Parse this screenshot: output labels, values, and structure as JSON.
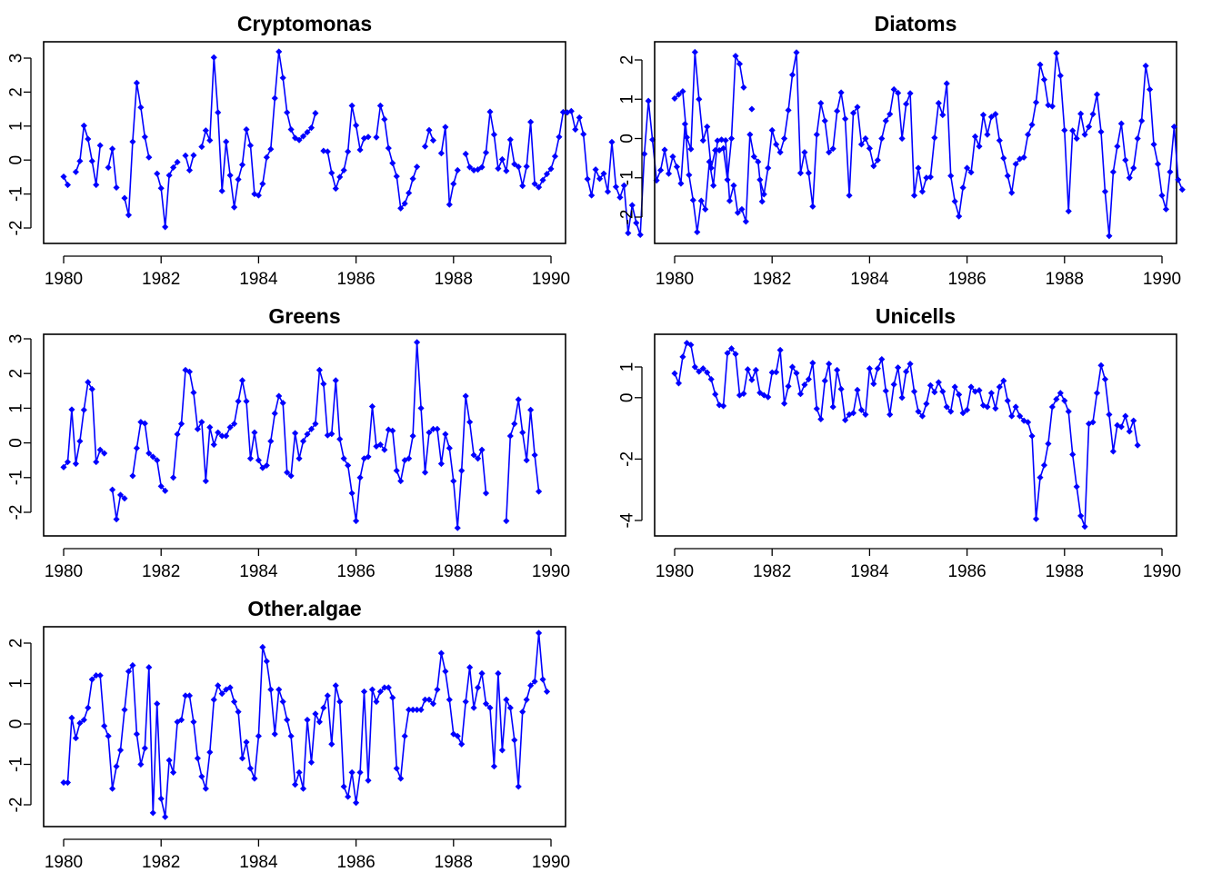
{
  "chart_data": [
    {
      "type": "line",
      "title": "Cryptomonas",
      "xlabel": "",
      "ylabel": "",
      "xlim": [
        1980,
        1990
      ],
      "ylim": [
        -2.3,
        3.2
      ],
      "x_ticks": [
        1980,
        1982,
        1984,
        1986,
        1988,
        1990
      ],
      "y_ticks": [
        -2,
        -1,
        0,
        1,
        2,
        3
      ],
      "x_start": 1980.0,
      "x_step": 0.08333,
      "style": {
        "color": "#0000ff",
        "markers": true,
        "line": true
      },
      "values": [
        -0.49,
        -0.73,
        null,
        -0.35,
        -0.03,
        1.01,
        0.62,
        -0.03,
        -0.73,
        0.43,
        null,
        -0.22,
        0.33,
        -0.81,
        null,
        -1.12,
        -1.62,
        0.54,
        2.27,
        1.55,
        0.68,
        0.08,
        null,
        -0.4,
        -0.83,
        -1.97,
        -0.45,
        -0.22,
        -0.06,
        null,
        0.13,
        -0.3,
        0.14,
        null,
        0.39,
        0.87,
        0.58,
        3.02,
        1.4,
        -0.91,
        0.54,
        -0.45,
        -1.39,
        -0.57,
        -0.14,
        0.9,
        0.43,
        -1.0,
        -1.04,
        -0.7,
        0.08,
        0.32,
        1.82,
        3.19,
        2.42,
        1.4,
        0.9,
        0.65,
        0.59,
        0.7,
        0.82,
        0.95,
        1.38,
        null,
        0.27,
        0.25,
        -0.38,
        -0.84,
        -0.5,
        -0.3,
        0.25,
        1.6,
        1.02,
        0.3,
        0.64,
        0.68,
        null,
        0.67,
        1.6,
        1.2,
        0.35,
        -0.09,
        -0.48,
        -1.42,
        -1.28,
        -0.97,
        -0.55,
        -0.2,
        null,
        0.4,
        0.88,
        0.58,
        null,
        0.2,
        0.97,
        -1.31,
        -0.7,
        -0.3,
        null,
        0.18,
        -0.21,
        -0.3,
        -0.28,
        -0.21,
        0.22,
        1.42,
        0.75,
        -0.25,
        0.02,
        -0.32,
        0.6,
        -0.12,
        -0.2,
        -0.76,
        -0.19,
        1.12,
        -0.7,
        -0.8,
        -0.59,
        -0.41,
        -0.26,
        0.11,
        0.68,
        1.41,
        1.4,
        1.44,
        0.9,
        1.25,
        0.76,
        -0.56,
        -1.04,
        -0.28,
        -0.55,
        -0.4,
        -0.93,
        0.53,
        -0.79,
        -1.1,
        -0.75,
        -2.15,
        -1.33,
        -1.85,
        -2.2,
        0.18,
        1.74,
        0.6,
        -0.6,
        -0.3,
        0.3,
        -0.4,
        0.1,
        -0.2,
        -0.69,
        1.06,
        -0.44,
        -1.18,
        -2.12,
        -1.2,
        -1.45,
        -0.05,
        -0.75,
        0.57,
        0.6,
        0.58,
        -1.2,
        -0.75,
        -1.55,
        -1.45,
        -1.81,
        0.75,
        0.1,
        -0.05,
        -1.22
      ]
    },
    {
      "type": "line",
      "title": "Diatoms",
      "xlabel": "",
      "ylabel": "",
      "xlim": [
        1980,
        1990
      ],
      "ylim": [
        -2.6,
        2.3
      ],
      "x_ticks": [
        1980,
        1982,
        1984,
        1986,
        1988,
        1990
      ],
      "y_ticks": [
        -2,
        -1,
        0,
        1,
        2
      ],
      "x_start": 1980.0,
      "x_step": 0.08333,
      "style": {
        "color": "#0000ff",
        "markers": true,
        "line": true
      },
      "values": [
        1.02,
        1.12,
        1.2,
        0.03,
        -0.27,
        2.2,
        1.0,
        -0.05,
        0.3,
        -0.75,
        -0.3,
        -0.3,
        -0.25,
        -1.05,
        0.0,
        2.1,
        1.9,
        1.3,
        null,
        0.75,
        null,
        -1.05,
        -1.42,
        -0.75,
        0.21,
        -0.15,
        -0.35,
        0.0,
        0.72,
        1.62,
        2.19,
        -0.88,
        -0.35,
        -0.88,
        -1.73,
        0.1,
        0.9,
        0.45,
        -0.35,
        -0.26,
        0.7,
        1.17,
        0.5,
        -1.45,
        0.65,
        0.8,
        -0.15,
        0.0,
        -0.25,
        -0.7,
        -0.55,
        0.0,
        0.45,
        0.62,
        1.25,
        1.16,
        0.0,
        0.88,
        1.15,
        -1.45,
        -0.75,
        -1.35,
        -1.0,
        -0.98,
        0.02,
        0.9,
        0.6,
        1.4,
        -0.95,
        -1.6,
        -1.98,
        -1.25,
        -0.75,
        -0.86,
        0.05,
        -0.2,
        0.6,
        0.1,
        0.55,
        0.62,
        -0.05,
        -0.5,
        -0.95,
        -1.38,
        -0.65,
        -0.52,
        -0.48,
        0.1,
        0.35,
        0.92,
        1.88,
        1.5,
        0.85,
        0.82,
        2.17,
        1.6,
        0.21,
        -1.85,
        0.2,
        0.0,
        0.63,
        0.1,
        0.3,
        0.62,
        1.12,
        0.17,
        -1.35,
        -2.48,
        -0.85,
        -0.2,
        0.38,
        -0.55,
        -1.0,
        -0.75,
        0.0,
        0.45,
        1.85,
        1.25,
        -0.15,
        -0.65,
        -1.45,
        -1.8,
        -0.85,
        0.3,
        -1.05,
        -1.3
      ]
    },
    {
      "type": "line",
      "title": "Greens",
      "xlabel": "",
      "ylabel": "",
      "xlim": [
        1980,
        1990
      ],
      "ylim": [
        -2.6,
        3.0
      ],
      "x_ticks": [
        1980,
        1982,
        1984,
        1986,
        1988,
        1990
      ],
      "y_ticks": [
        -2,
        -1,
        0,
        1,
        2,
        3
      ],
      "x_start": 1980.0,
      "x_step": 0.08333,
      "style": {
        "color": "#0000ff",
        "markers": true,
        "line": true
      },
      "values": [
        -0.7,
        -0.55,
        0.96,
        -0.6,
        0.05,
        0.95,
        1.75,
        1.55,
        -0.55,
        -0.2,
        -0.3,
        null,
        -1.35,
        -2.2,
        -1.5,
        -1.6,
        null,
        -0.95,
        -0.15,
        0.6,
        0.56,
        -0.3,
        -0.4,
        -0.5,
        -1.25,
        -1.38,
        null,
        -1.0,
        0.25,
        0.55,
        2.1,
        2.05,
        1.45,
        0.4,
        0.6,
        -1.1,
        0.45,
        -0.05,
        0.3,
        0.2,
        0.2,
        0.45,
        0.55,
        1.2,
        1.8,
        1.2,
        -0.45,
        0.3,
        -0.5,
        -0.72,
        -0.65,
        0.05,
        0.85,
        1.35,
        1.15,
        -0.85,
        -0.95,
        0.28,
        -0.45,
        0.05,
        0.25,
        0.4,
        0.55,
        2.1,
        1.7,
        0.22,
        0.26,
        1.8,
        0.11,
        -0.45,
        -0.65,
        -1.45,
        -2.25,
        -1.0,
        -0.45,
        -0.4,
        1.05,
        -0.1,
        -0.05,
        -0.2,
        0.38,
        0.35,
        -0.8,
        -1.1,
        -0.5,
        -0.45,
        0.2,
        2.9,
        1.0,
        -0.85,
        0.3,
        0.4,
        0.4,
        -0.6,
        0.25,
        -0.15,
        -1.1,
        -2.45,
        -0.8,
        1.35,
        0.6,
        -0.35,
        -0.45,
        -0.2,
        -1.45,
        null,
        null,
        null,
        null,
        -2.25,
        0.2,
        0.55,
        1.25,
        0.3,
        -0.5,
        0.95,
        -0.35,
        -1.4
      ]
    },
    {
      "type": "line",
      "title": "Unicells",
      "xlabel": "",
      "ylabel": "",
      "xlim": [
        1980,
        1990
      ],
      "ylim": [
        -4.4,
        1.5
      ],
      "x_ticks": [
        1980,
        1982,
        1984,
        1986,
        1988,
        1990
      ],
      "y_ticks": [
        -4,
        -2,
        0,
        1
      ],
      "x_start": 1980.0,
      "x_step": 0.08333,
      "style": {
        "color": "#0000ff",
        "markers": true,
        "line": true
      },
      "values": [
        0.79,
        0.47,
        1.33,
        1.78,
        1.72,
        1.0,
        0.85,
        0.95,
        0.82,
        0.6,
        0.11,
        -0.24,
        -0.27,
        1.45,
        1.6,
        1.42,
        0.08,
        0.13,
        0.92,
        0.58,
        0.9,
        0.16,
        0.08,
        0.02,
        0.82,
        0.83,
        1.55,
        -0.19,
        0.37,
        1.0,
        0.8,
        0.12,
        0.42,
        0.6,
        1.13,
        -0.36,
        -0.7,
        0.55,
        1.1,
        -0.3,
        0.9,
        0.28,
        -0.73,
        -0.55,
        -0.5,
        0.25,
        -0.4,
        -0.55,
        0.95,
        0.45,
        0.95,
        1.25,
        0.22,
        -0.55,
        0.43,
        0.98,
        0.0,
        0.85,
        1.1,
        0.2,
        -0.45,
        -0.6,
        -0.2,
        0.4,
        0.18,
        0.5,
        0.2,
        -0.3,
        -0.45,
        0.35,
        0.1,
        -0.5,
        -0.4,
        0.35,
        0.2,
        0.24,
        -0.25,
        -0.3,
        0.15,
        -0.35,
        0.35,
        0.55,
        -0.1,
        -0.6,
        -0.3,
        -0.6,
        -0.75,
        -0.8,
        -1.25,
        -3.95,
        -2.6,
        -2.2,
        -1.5,
        -0.3,
        -0.05,
        0.15,
        -0.1,
        -0.45,
        -1.85,
        -2.9,
        -3.85,
        -4.2,
        -0.85,
        -0.8,
        0.15,
        1.05,
        0.6,
        -0.55,
        -1.75,
        -0.9,
        -0.95,
        -0.6,
        -1.1,
        -0.75,
        -1.55
      ]
    },
    {
      "type": "line",
      "title": "Other.algae",
      "xlabel": "",
      "ylabel": "",
      "xlim": [
        1980,
        1990
      ],
      "ylim": [
        -2.5,
        2.4
      ],
      "x_ticks": [
        1980,
        1982,
        1984,
        1986,
        1988,
        1990
      ],
      "y_ticks": [
        -2,
        -1,
        0,
        1,
        2
      ],
      "x_start": 1980.0,
      "x_step": 0.08333,
      "style": {
        "color": "#0000ff",
        "markers": true,
        "line": true
      },
      "values": [
        -1.45,
        -1.45,
        0.15,
        -0.35,
        0.02,
        0.1,
        0.4,
        1.1,
        1.2,
        1.2,
        -0.05,
        -0.3,
        -1.6,
        -1.05,
        -0.65,
        0.35,
        1.3,
        1.45,
        -0.25,
        -1.0,
        -0.6,
        1.4,
        -2.2,
        0.5,
        -1.85,
        -2.3,
        -0.9,
        -1.2,
        0.05,
        0.1,
        0.7,
        0.7,
        0.05,
        -0.85,
        -1.3,
        -1.6,
        -0.7,
        0.6,
        0.95,
        0.75,
        0.85,
        0.9,
        0.55,
        0.3,
        -0.85,
        -0.45,
        -1.1,
        -1.35,
        -0.3,
        1.9,
        1.55,
        0.85,
        -0.25,
        0.85,
        0.55,
        0.1,
        -0.3,
        -1.5,
        -1.2,
        -1.6,
        0.1,
        -0.95,
        0.25,
        0.05,
        0.4,
        0.7,
        -0.5,
        0.95,
        0.55,
        -1.55,
        -1.8,
        -1.2,
        -1.95,
        -1.2,
        0.8,
        -1.4,
        0.85,
        0.55,
        0.8,
        0.9,
        0.9,
        0.65,
        -1.1,
        -1.35,
        -0.3,
        0.35,
        0.35,
        0.35,
        0.35,
        0.6,
        0.6,
        0.5,
        0.85,
        1.75,
        1.3,
        0.6,
        -0.25,
        -0.3,
        -0.5,
        0.55,
        1.4,
        0.4,
        0.9,
        1.25,
        0.5,
        0.4,
        -1.05,
        1.25,
        -0.65,
        0.6,
        0.4,
        -0.4,
        -1.55,
        0.3,
        0.6,
        0.95,
        1.05,
        2.25,
        1.1,
        0.8
      ]
    }
  ]
}
